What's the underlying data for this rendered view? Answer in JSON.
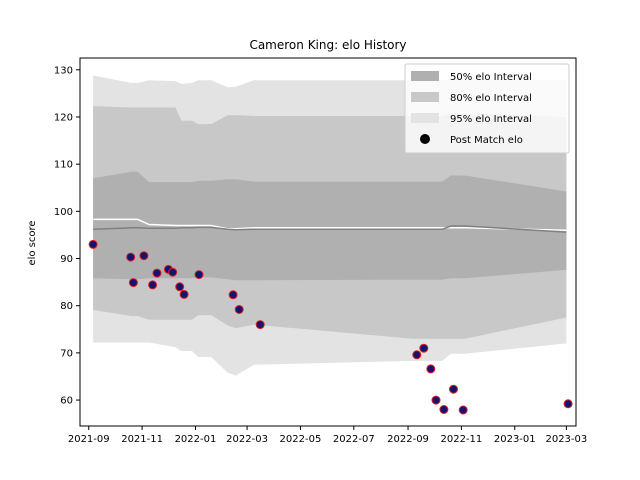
{
  "chart_data": {
    "type": "line",
    "title": "Cameron King: elo History",
    "xlabel": "",
    "ylabel": "elo score",
    "x_range": [
      "2021-08-22",
      "2023-03-12"
    ],
    "ylim": [
      54.5,
      132.5
    ],
    "x_ticks": [
      {
        "date": "2021-09-01",
        "label": "2021-09"
      },
      {
        "date": "2021-11-01",
        "label": "2021-11"
      },
      {
        "date": "2022-01-01",
        "label": "2022-01"
      },
      {
        "date": "2022-03-01",
        "label": "2022-03"
      },
      {
        "date": "2022-05-01",
        "label": "2022-05"
      },
      {
        "date": "2022-07-01",
        "label": "2022-07"
      },
      {
        "date": "2022-09-01",
        "label": "2022-09"
      },
      {
        "date": "2022-11-01",
        "label": "2022-11"
      },
      {
        "date": "2023-01-01",
        "label": "2023-01"
      },
      {
        "date": "2023-03-01",
        "label": "2023-03"
      }
    ],
    "y_ticks": [
      60,
      70,
      80,
      90,
      100,
      110,
      120,
      130
    ],
    "grid": false,
    "legend_position": "top-right",
    "legend": [
      {
        "label": "50% elo Interval",
        "kind": "patch",
        "color": "#b0b0b0"
      },
      {
        "label": "80% elo Interval",
        "kind": "patch",
        "color": "#c8c8c8"
      },
      {
        "label": "95% elo Interval",
        "kind": "patch",
        "color": "#e3e3e3"
      },
      {
        "label": "Post Match elo",
        "kind": "marker",
        "color": "#000000"
      }
    ],
    "colors": {
      "band95": "#e3e3e3",
      "band80": "#c8c8c8",
      "band50": "#b0b0b0",
      "mean_line": "#808080",
      "upper_line": "#ffffff",
      "marker_fill": "#14146e",
      "marker_edge": "#dd1f1f"
    },
    "bands": {
      "x": [
        "2021-09-06",
        "2021-10-20",
        "2021-10-27",
        "2021-11-09",
        "2021-12-09",
        "2021-12-16",
        "2021-12-28",
        "2022-01-04",
        "2022-01-19",
        "2022-02-07",
        "2022-02-16",
        "2022-03-09",
        "2022-09-06",
        "2022-10-10",
        "2022-10-20",
        "2022-11-05",
        "2023-03-01"
      ],
      "p95_low": [
        72.2,
        72.2,
        72.2,
        72.2,
        71.2,
        70.4,
        70.4,
        69.1,
        69.1,
        65.8,
        65.2,
        67.5,
        68.3,
        68.3,
        69.8,
        69.8,
        72.0
      ],
      "p95_high": [
        128.8,
        127.2,
        127.2,
        127.8,
        127.6,
        127.0,
        127.2,
        127.8,
        127.8,
        126.3,
        126.4,
        127.8,
        127.8,
        127.8,
        128.0,
        128.0,
        127.8
      ],
      "p80_low": [
        79.1,
        77.8,
        77.8,
        77.0,
        77.0,
        77.0,
        77.0,
        78.0,
        78.0,
        75.8,
        75.2,
        76.0,
        73.0,
        73.0,
        73.0,
        73.0,
        77.5
      ],
      "p80_high": [
        122.3,
        122.0,
        122.0,
        122.0,
        122.0,
        119.2,
        119.2,
        118.5,
        118.5,
        120.4,
        120.4,
        120.2,
        120.2,
        120.2,
        120.8,
        120.8,
        120.0
      ],
      "p50_low": [
        85.8,
        85.6,
        85.6,
        85.8,
        85.8,
        85.8,
        85.8,
        86.0,
        86.0,
        85.6,
        85.4,
        85.4,
        85.5,
        85.5,
        85.8,
        85.8,
        87.6
      ],
      "p50_high": [
        107.0,
        108.4,
        108.4,
        106.2,
        106.2,
        106.2,
        106.2,
        106.5,
        106.5,
        106.8,
        106.8,
        106.3,
        106.3,
        106.3,
        107.6,
        107.6,
        104.2
      ],
      "mean": [
        96.2,
        96.5,
        96.5,
        96.4,
        96.4,
        96.5,
        96.5,
        96.6,
        96.6,
        96.2,
        96.1,
        96.2,
        96.2,
        96.2,
        96.9,
        96.9,
        95.6
      ],
      "upper_line": [
        98.3,
        98.3,
        98.3,
        97.2,
        97.0,
        97.0,
        97.0,
        97.0,
        97.0,
        96.3,
        96.3,
        96.5,
        96.5,
        96.5,
        96.5,
        96.5,
        96.0
      ]
    },
    "series": [
      {
        "name": "Post Match elo",
        "points": [
          {
            "x": "2021-09-06",
            "y": 93.0
          },
          {
            "x": "2021-10-19",
            "y": 90.3
          },
          {
            "x": "2021-10-22",
            "y": 84.9
          },
          {
            "x": "2021-11-03",
            "y": 90.6
          },
          {
            "x": "2021-11-13",
            "y": 84.4
          },
          {
            "x": "2021-11-18",
            "y": 86.9
          },
          {
            "x": "2021-12-01",
            "y": 87.7
          },
          {
            "x": "2021-12-06",
            "y": 87.1
          },
          {
            "x": "2021-12-14",
            "y": 84.0
          },
          {
            "x": "2021-12-19",
            "y": 82.4
          },
          {
            "x": "2022-01-05",
            "y": 86.6
          },
          {
            "x": "2022-02-13",
            "y": 82.3
          },
          {
            "x": "2022-02-20",
            "y": 79.2
          },
          {
            "x": "2022-03-16",
            "y": 76.0
          },
          {
            "x": "2022-09-11",
            "y": 69.6
          },
          {
            "x": "2022-09-19",
            "y": 71.0
          },
          {
            "x": "2022-09-27",
            "y": 66.6
          },
          {
            "x": "2022-10-03",
            "y": 60.0
          },
          {
            "x": "2022-10-12",
            "y": 58.0
          },
          {
            "x": "2022-10-23",
            "y": 62.3
          },
          {
            "x": "2022-11-03",
            "y": 57.9
          },
          {
            "x": "2023-03-03",
            "y": 59.2
          }
        ]
      }
    ]
  }
}
